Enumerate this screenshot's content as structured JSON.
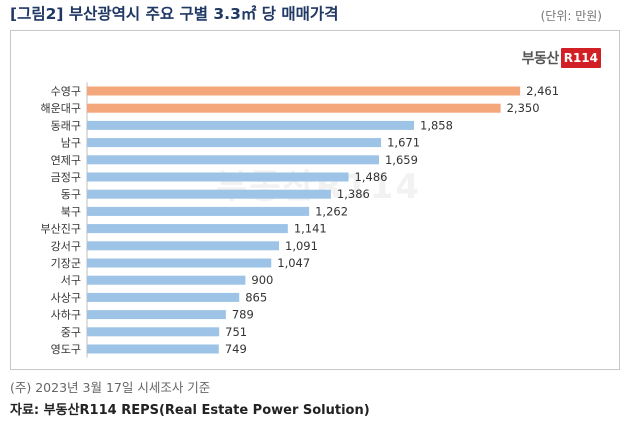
{
  "header": {
    "title": "[그림2] 부산광역시 주요 구별 3.3㎡ 당 매매가격",
    "unit": "(단위: 만원)"
  },
  "logo": {
    "text": "부동산",
    "badge": "R114"
  },
  "watermark": "부동산R114",
  "colors": {
    "highlight": "#f4a77a",
    "normal": "#9dc3e6",
    "title": "#1f3864"
  },
  "chart_data": {
    "type": "bar",
    "orientation": "horizontal",
    "categories": [
      "수영구",
      "해운대구",
      "동래구",
      "남구",
      "연제구",
      "금정구",
      "동구",
      "북구",
      "부산진구",
      "강서구",
      "기장군",
      "서구",
      "사상구",
      "사하구",
      "중구",
      "영도구"
    ],
    "values": [
      2461,
      2350,
      1858,
      1671,
      1659,
      1486,
      1386,
      1262,
      1141,
      1091,
      1047,
      900,
      865,
      789,
      751,
      749
    ],
    "value_labels": [
      "2,461",
      "2,350",
      "1,858",
      "1,671",
      "1,659",
      "1,486",
      "1,386",
      "1,262",
      "1,141",
      "1,091",
      "1,047",
      "900",
      "865",
      "789",
      "751",
      "749"
    ],
    "highlighted": [
      "수영구",
      "해운대구"
    ],
    "xlim": [
      0,
      2500
    ],
    "grid": false,
    "legend": "none"
  },
  "footer": {
    "note": "(주) 2023년 3월 17일 시세조사 기준",
    "source": "자료: 부동산R114 REPS(Real Estate Power Solution)"
  }
}
